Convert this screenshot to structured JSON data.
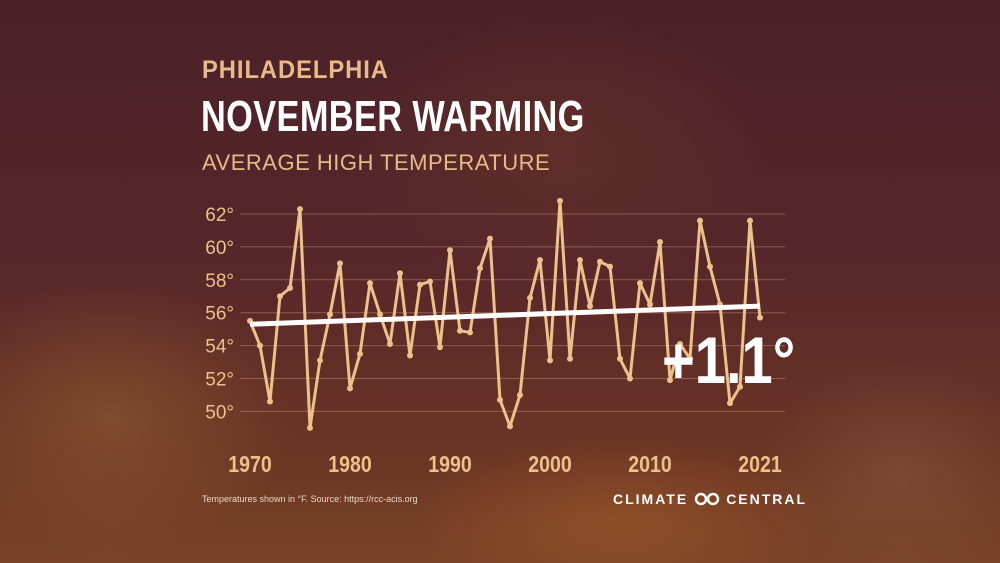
{
  "header": {
    "city": "PHILADELPHIA",
    "title": "NOVEMBER WARMING",
    "subtitle": "AVERAGE HIGH TEMPERATURE"
  },
  "chart_data": {
    "type": "line",
    "title": "NOVEMBER WARMING",
    "subtitle": "AVERAGE HIGH TEMPERATURE",
    "xlabel": "",
    "ylabel": "",
    "ylim": [
      50,
      62
    ],
    "xlim": [
      1970,
      2021
    ],
    "yticks": [
      "62°",
      "60°",
      "58°",
      "56°",
      "54°",
      "52°",
      "50°"
    ],
    "ytick_values": [
      62,
      60,
      58,
      56,
      54,
      52,
      50
    ],
    "xticks": [
      "1970",
      "1980",
      "1990",
      "2000",
      "2010",
      "2021"
    ],
    "xtick_values": [
      1970,
      1980,
      1990,
      2000,
      2010,
      2021
    ],
    "grid": true,
    "x": [
      1970,
      1971,
      1972,
      1973,
      1974,
      1975,
      1976,
      1977,
      1978,
      1979,
      1980,
      1981,
      1982,
      1983,
      1984,
      1985,
      1986,
      1987,
      1988,
      1989,
      1990,
      1991,
      1992,
      1993,
      1994,
      1995,
      1996,
      1997,
      1998,
      1999,
      2000,
      2001,
      2002,
      2003,
      2004,
      2005,
      2006,
      2007,
      2008,
      2009,
      2010,
      2011,
      2012,
      2013,
      2014,
      2015,
      2016,
      2017,
      2018,
      2019,
      2020,
      2021
    ],
    "series": [
      {
        "values": [
          55.5,
          54.0,
          50.6,
          57.0,
          57.5,
          62.3,
          49.0,
          53.1,
          55.9,
          59.0,
          51.4,
          53.5,
          57.8,
          55.9,
          54.1,
          58.4,
          53.4,
          57.7,
          57.9,
          53.9,
          59.8,
          54.9,
          54.8,
          58.7,
          60.5,
          50.7,
          49.1,
          51.0,
          56.9,
          59.2,
          53.1,
          62.8,
          53.2,
          59.2,
          56.4,
          59.1,
          58.8,
          53.2,
          52.0,
          57.8,
          56.5,
          60.3,
          51.9,
          54.1,
          53.2,
          61.6,
          58.8,
          56.5,
          50.5,
          51.5,
          61.6,
          55.7
        ],
        "color": "#eec08a"
      }
    ],
    "trend": {
      "start": [
        1970,
        55.3
      ],
      "end": [
        2021,
        56.4
      ],
      "color": "#ffffff"
    },
    "annotation": "+1.1°"
  },
  "footer": {
    "source": "Temperatures shown in °F. Source: https://rcc-acis.org",
    "logo_left": "CLIMATE",
    "logo_right": "CENTRAL"
  }
}
